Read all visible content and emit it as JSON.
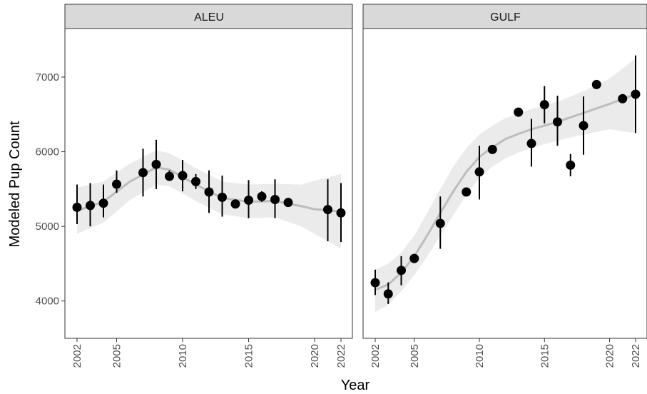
{
  "chart_data": {
    "type": "scatter",
    "xlabel": "Year",
    "ylabel": "Modeled Pup Count",
    "xlim": [
      2001.5,
      2022.5
    ],
    "ylim": [
      3500,
      7650
    ],
    "x_ticks": [
      2002,
      2005,
      2010,
      2015,
      2020,
      2022
    ],
    "y_ticks": [
      4000,
      5000,
      6000,
      7000
    ],
    "grid": false,
    "colors": {
      "point": "#000000",
      "trend": "#bdbdbd",
      "ribbon": "#ebebeb",
      "strip": "#d9d9d9"
    },
    "panels": [
      {
        "name": "ALEU",
        "points": [
          {
            "x": 2002,
            "y": 5255,
            "lo": 5030,
            "hi": 5560
          },
          {
            "x": 2003,
            "y": 5280,
            "lo": 5000,
            "hi": 5580
          },
          {
            "x": 2004,
            "y": 5310,
            "lo": 5120,
            "hi": 5560
          },
          {
            "x": 2005,
            "y": 5565,
            "lo": 5450,
            "hi": 5750
          },
          {
            "x": 2007,
            "y": 5720,
            "lo": 5400,
            "hi": 6040
          },
          {
            "x": 2008,
            "y": 5830,
            "lo": 5500,
            "hi": 6160
          },
          {
            "x": 2009,
            "y": 5670,
            "lo": 5620,
            "hi": 5750
          },
          {
            "x": 2010,
            "y": 5680,
            "lo": 5470,
            "hi": 5890
          },
          {
            "x": 2011,
            "y": 5600,
            "lo": 5500,
            "hi": 5700
          },
          {
            "x": 2012,
            "y": 5460,
            "lo": 5180,
            "hi": 5750
          },
          {
            "x": 2013,
            "y": 5390,
            "lo": 5130,
            "hi": 5680
          },
          {
            "x": 2014,
            "y": 5300,
            "lo": 5270,
            "hi": 5320
          },
          {
            "x": 2015,
            "y": 5350,
            "lo": 5110,
            "hi": 5620
          },
          {
            "x": 2016,
            "y": 5400,
            "lo": 5330,
            "hi": 5470
          },
          {
            "x": 2017,
            "y": 5360,
            "lo": 5110,
            "hi": 5630
          },
          {
            "x": 2018,
            "y": 5320,
            "lo": 5270,
            "hi": 5370
          },
          {
            "x": 2021,
            "y": 5225,
            "lo": 4800,
            "hi": 5630
          },
          {
            "x": 2022,
            "y": 5180,
            "lo": 4790,
            "hi": 5580
          }
        ],
        "trend": [
          {
            "x": 2002,
            "y": 5210,
            "lo": 4900,
            "hi": 5520
          },
          {
            "x": 2004,
            "y": 5330,
            "lo": 5050,
            "hi": 5600
          },
          {
            "x": 2006,
            "y": 5600,
            "lo": 5350,
            "hi": 5840
          },
          {
            "x": 2008,
            "y": 5790,
            "lo": 5560,
            "hi": 6020
          },
          {
            "x": 2009,
            "y": 5760,
            "lo": 5540,
            "hi": 5980
          },
          {
            "x": 2011,
            "y": 5560,
            "lo": 5340,
            "hi": 5780
          },
          {
            "x": 2013,
            "y": 5380,
            "lo": 5160,
            "hi": 5600
          },
          {
            "x": 2015,
            "y": 5330,
            "lo": 5110,
            "hi": 5560
          },
          {
            "x": 2017,
            "y": 5340,
            "lo": 5120,
            "hi": 5570
          },
          {
            "x": 2019,
            "y": 5270,
            "lo": 5000,
            "hi": 5560
          },
          {
            "x": 2020,
            "y": 5230,
            "lo": 4900,
            "hi": 5610
          },
          {
            "x": 2022,
            "y": 5200,
            "lo": 4700,
            "hi": 5700
          }
        ]
      },
      {
        "name": "GULF",
        "points": [
          {
            "x": 2002,
            "y": 4245,
            "lo": 4080,
            "hi": 4420
          },
          {
            "x": 2003,
            "y": 4095,
            "lo": 3960,
            "hi": 4250
          },
          {
            "x": 2004,
            "y": 4410,
            "lo": 4210,
            "hi": 4600
          },
          {
            "x": 2005,
            "y": 4570,
            "lo": 4550,
            "hi": 4590
          },
          {
            "x": 2007,
            "y": 5040,
            "lo": 4700,
            "hi": 5400
          },
          {
            "x": 2009,
            "y": 5460,
            "lo": 5430,
            "hi": 5490
          },
          {
            "x": 2010,
            "y": 5730,
            "lo": 5360,
            "hi": 6080
          },
          {
            "x": 2011,
            "y": 6030,
            "lo": 6000,
            "hi": 6060
          },
          {
            "x": 2013,
            "y": 6530,
            "lo": 6500,
            "hi": 6560
          },
          {
            "x": 2014,
            "y": 6110,
            "lo": 5800,
            "hi": 6440
          },
          {
            "x": 2015,
            "y": 6630,
            "lo": 6380,
            "hi": 6880
          },
          {
            "x": 2016,
            "y": 6400,
            "lo": 6080,
            "hi": 6750
          },
          {
            "x": 2017,
            "y": 5820,
            "lo": 5670,
            "hi": 5970
          },
          {
            "x": 2018,
            "y": 6350,
            "lo": 5960,
            "hi": 6740
          },
          {
            "x": 2019,
            "y": 6900,
            "lo": 6870,
            "hi": 6930
          },
          {
            "x": 2021,
            "y": 6710,
            "lo": 6680,
            "hi": 6740
          },
          {
            "x": 2022,
            "y": 6770,
            "lo": 6250,
            "hi": 7290
          }
        ],
        "trend": [
          {
            "x": 2002,
            "y": 4150,
            "lo": 3850,
            "hi": 4420
          },
          {
            "x": 2003,
            "y": 4220,
            "lo": 3950,
            "hi": 4500
          },
          {
            "x": 2004,
            "y": 4380,
            "lo": 4130,
            "hi": 4650
          },
          {
            "x": 2005,
            "y": 4600,
            "lo": 4350,
            "hi": 4880
          },
          {
            "x": 2006,
            "y": 4880,
            "lo": 4600,
            "hi": 5180
          },
          {
            "x": 2007,
            "y": 5180,
            "lo": 4880,
            "hi": 5500
          },
          {
            "x": 2008,
            "y": 5470,
            "lo": 5150,
            "hi": 5800
          },
          {
            "x": 2009,
            "y": 5730,
            "lo": 5420,
            "hi": 6050
          },
          {
            "x": 2010,
            "y": 5930,
            "lo": 5650,
            "hi": 6230
          },
          {
            "x": 2011,
            "y": 6060,
            "lo": 5800,
            "hi": 6350
          },
          {
            "x": 2012,
            "y": 6170,
            "lo": 5910,
            "hi": 6450
          },
          {
            "x": 2013,
            "y": 6240,
            "lo": 5990,
            "hi": 6510
          },
          {
            "x": 2014,
            "y": 6300,
            "lo": 6050,
            "hi": 6570
          },
          {
            "x": 2016,
            "y": 6400,
            "lo": 6150,
            "hi": 6670
          },
          {
            "x": 2018,
            "y": 6520,
            "lo": 6230,
            "hi": 6810
          },
          {
            "x": 2020,
            "y": 6640,
            "lo": 6300,
            "hi": 6980
          },
          {
            "x": 2022,
            "y": 6770,
            "lo": 6250,
            "hi": 7250
          }
        ]
      }
    ]
  }
}
